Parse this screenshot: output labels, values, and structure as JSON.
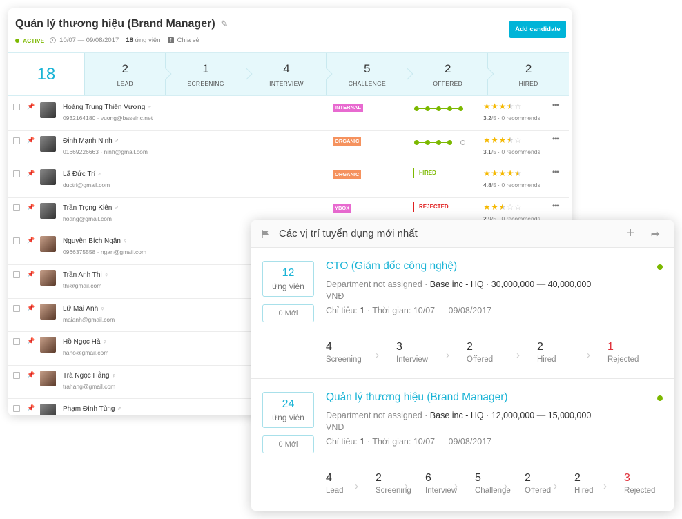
{
  "pipeline_view": {
    "title": "Quản lý thương hiệu (Brand Manager)",
    "status": "ACTIVE",
    "date_range": "10/07 — 09/08/2017",
    "candidates_count": "18",
    "candidates_label": "ứng viên",
    "share_label": "Chia sẻ",
    "add_button": "Add candidate",
    "total": "18",
    "stages": [
      {
        "count": "2",
        "label": "LEAD"
      },
      {
        "count": "1",
        "label": "SCREENING"
      },
      {
        "count": "4",
        "label": "INTERVIEW"
      },
      {
        "count": "5",
        "label": "CHALLENGE"
      },
      {
        "count": "2",
        "label": "OFFERED"
      },
      {
        "count": "2",
        "label": "HIRED"
      }
    ],
    "candidates": [
      {
        "name": "Hoàng Trung Thiên Vương",
        "gender": "♂",
        "contact": "0932164180 · vuong@baseinc.net",
        "source": "INTERNAL",
        "stage_progress": 5,
        "stage_total": 5,
        "rating": "3.2",
        "stars": 3.5,
        "recommends": "0 recommends"
      },
      {
        "name": "Đinh Mạnh Ninh",
        "gender": "♂",
        "contact": "01669226663 · ninh@gmail.com",
        "source": "ORGANIC",
        "stage_progress": 4,
        "stage_total": 5,
        "rating": "3.1",
        "stars": 3.5,
        "recommends": "0 recommends"
      },
      {
        "name": "Lã Đức Trí",
        "gender": "♂",
        "contact": "ductri@gmail.com",
        "source": "ORGANIC",
        "status": "HIRED",
        "rating": "4.8",
        "stars": 4.5,
        "recommends": "0 recommends"
      },
      {
        "name": "Trần Trọng Kiên",
        "gender": "♂",
        "contact": "hoang@gmail.com",
        "source": "YBOX",
        "status": "REJECTED",
        "rating": "2.9",
        "stars": 2.5,
        "recommends": "0 recommends"
      },
      {
        "name": "Nguyễn Bích Ngân",
        "gender": "♀",
        "contact": "0966375558 · ngan@gmail.com"
      },
      {
        "name": "Trần Anh Thi",
        "gender": "♀",
        "contact": "thi@gmail.com"
      },
      {
        "name": "Lữ Mai Anh",
        "gender": "♀",
        "contact": "maianh@gmail.com"
      },
      {
        "name": "Hồ Ngọc Hà",
        "gender": "♀",
        "contact": "haho@gmail.com"
      },
      {
        "name": "Trà Ngọc Hằng",
        "gender": "♀",
        "contact": "trahang@gmail.com"
      },
      {
        "name": "Phạm Đình Tùng",
        "gender": "♂",
        "contact": ""
      }
    ]
  },
  "recent_jobs": {
    "title": "Các vị trí tuyển dụng mới nhất",
    "jobs": [
      {
        "count": "12",
        "count_label": "ứng viên",
        "new_label": "0 Mới",
        "title": "CTO (Giám đốc công nghệ)",
        "department": "Department not assigned",
        "company": "Base inc - HQ",
        "salary_min": "30,000,000",
        "salary_max": "40,000,000",
        "currency": "VNĐ",
        "quota_label": "Chỉ tiêu:",
        "quota": "1",
        "period_label": "Thời gian:",
        "period": "10/07 — 09/08/2017",
        "stages": [
          {
            "count": "4",
            "label": "Screening"
          },
          {
            "count": "3",
            "label": "Interview"
          },
          {
            "count": "2",
            "label": "Offered"
          },
          {
            "count": "2",
            "label": "Hired"
          },
          {
            "count": "1",
            "label": "Rejected",
            "red": true
          }
        ]
      },
      {
        "count": "24",
        "count_label": "ứng viên",
        "new_label": "0 Mới",
        "title": "Quản lý thương hiệu (Brand Manager)",
        "department": "Department not assigned",
        "company": "Base inc - HQ",
        "salary_min": "12,000,000",
        "salary_max": "15,000,000",
        "currency": "VNĐ",
        "quota_label": "Chỉ tiêu:",
        "quota": "1",
        "period_label": "Thời gian:",
        "period": "10/07 — 09/08/2017",
        "stages": [
          {
            "count": "4",
            "label": "Lead"
          },
          {
            "count": "2",
            "label": "Screening"
          },
          {
            "count": "6",
            "label": "Interview"
          },
          {
            "count": "5",
            "label": "Challenge"
          },
          {
            "count": "2",
            "label": "Offered"
          },
          {
            "count": "2",
            "label": "Hired"
          },
          {
            "count": "3",
            "label": "Rejected",
            "red": true
          }
        ]
      }
    ]
  }
}
